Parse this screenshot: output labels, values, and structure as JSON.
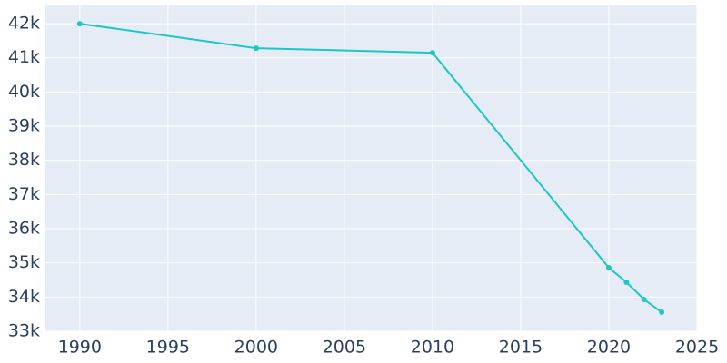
{
  "chart_data": {
    "type": "line",
    "x": [
      1990,
      2000,
      2010,
      2020,
      2021,
      2022,
      2023
    ],
    "series": [
      {
        "color": "#1cc7c7",
        "values": [
          42000,
          41283,
          41150,
          34858,
          34433,
          33929,
          33557
        ]
      }
    ],
    "xlim": [
      1988,
      2025
    ],
    "ylim": [
      33000,
      42560
    ],
    "xticks": [
      1990,
      1995,
      2000,
      2005,
      2010,
      2015,
      2020,
      2025
    ],
    "yticks": [
      {
        "value": 33000,
        "label": "33k"
      },
      {
        "value": 34000,
        "label": "34k"
      },
      {
        "value": 35000,
        "label": "35k"
      },
      {
        "value": 36000,
        "label": "36k"
      },
      {
        "value": 37000,
        "label": "37k"
      },
      {
        "value": 38000,
        "label": "38k"
      },
      {
        "value": 39000,
        "label": "39k"
      },
      {
        "value": 40000,
        "label": "40k"
      },
      {
        "value": 41000,
        "label": "41k"
      },
      {
        "value": 42000,
        "label": "42k"
      }
    ],
    "grid": true,
    "plot_background": "#e5ecf6"
  }
}
